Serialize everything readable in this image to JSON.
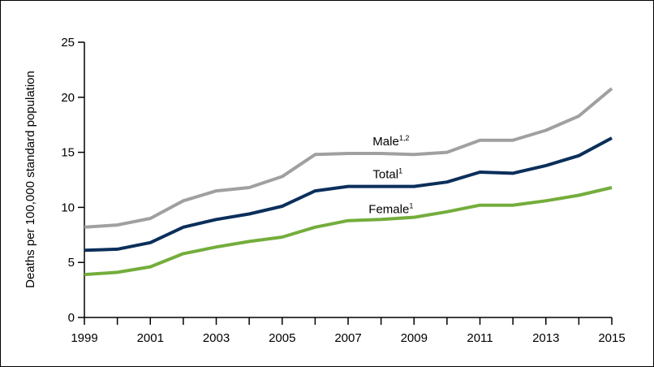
{
  "chart_data": {
    "type": "line",
    "title": "",
    "xlabel": "",
    "ylabel": "Deaths per 100,000 standard population",
    "x": [
      1999,
      2000,
      2001,
      2002,
      2003,
      2004,
      2005,
      2006,
      2007,
      2008,
      2009,
      2010,
      2011,
      2012,
      2013,
      2014,
      2015
    ],
    "x_tick_labels": [
      "1999",
      "2001",
      "2003",
      "2005",
      "2007",
      "2009",
      "2011",
      "2013",
      "2015"
    ],
    "y_tick_labels": [
      "0",
      "5",
      "10",
      "15",
      "20",
      "25"
    ],
    "ylim": [
      0,
      25
    ],
    "grid": false,
    "legend": "none",
    "series": [
      {
        "name": "Male",
        "superscript": "1,2",
        "color": "#a0a0a0",
        "values": [
          8.2,
          8.4,
          9.0,
          10.6,
          11.5,
          11.8,
          12.8,
          14.8,
          14.9,
          14.9,
          14.8,
          15.0,
          16.1,
          16.1,
          17.0,
          18.3,
          20.8
        ]
      },
      {
        "name": "Total",
        "superscript": "1",
        "color": "#0b2f5b",
        "values": [
          6.1,
          6.2,
          6.8,
          8.2,
          8.9,
          9.4,
          10.1,
          11.5,
          11.9,
          11.9,
          11.9,
          12.3,
          13.2,
          13.1,
          13.8,
          14.7,
          16.3
        ]
      },
      {
        "name": "Female",
        "superscript": "1",
        "color": "#74ad3c",
        "values": [
          3.9,
          4.1,
          4.6,
          5.8,
          6.4,
          6.9,
          7.3,
          8.2,
          8.8,
          8.9,
          9.1,
          9.6,
          10.2,
          10.2,
          10.6,
          11.1,
          11.8
        ]
      }
    ]
  }
}
